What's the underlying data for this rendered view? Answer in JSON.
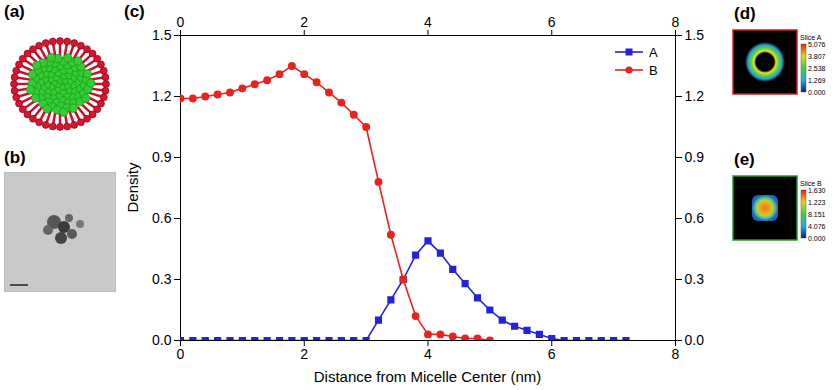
{
  "panels": [
    {
      "letter": "(a)"
    },
    {
      "letter": "(b)"
    },
    {
      "letter": "(d)",
      "colorbar": {
        "title": "Slice A",
        "labels": [
          "5.076",
          "3.807",
          "2.538",
          "1.269",
          "0.000"
        ]
      }
    },
    {
      "letter": "(e)",
      "colorbar": {
        "title": "Slice B",
        "labels": [
          "1.630",
          "1.223",
          "8.151",
          "4.076",
          "0.000"
        ]
      }
    }
  ],
  "chart_data": {
    "letter": "(c)",
    "type": "line",
    "xlabel": "Distance from Micelle Center (nm)",
    "ylabel": "Density",
    "xlim": [
      0,
      8
    ],
    "xticks": [
      0,
      2,
      4,
      6,
      8
    ],
    "ylim": [
      0,
      1.5
    ],
    "yticks": [
      {
        "value": 0,
        "label": "0.0"
      },
      {
        "value": 0.3,
        "label": "0.3"
      },
      {
        "value": 0.6,
        "label": "0.6"
      },
      {
        "value": 0.9,
        "label": "0.9"
      },
      {
        "value": 1.2,
        "label": "1.2"
      },
      {
        "value": 1.5,
        "label": "1.5"
      }
    ],
    "legend": "top-right",
    "x": [
      0,
      0.2,
      0.4,
      0.6,
      0.8,
      1.0,
      1.2,
      1.4,
      1.6,
      1.8,
      2.0,
      2.2,
      2.4,
      2.6,
      2.8,
      3.0,
      3.2,
      3.4,
      3.6,
      3.8,
      4.0,
      4.2,
      4.4,
      4.6,
      4.8,
      5.0,
      5.2,
      5.4,
      5.6,
      5.8,
      6.0,
      6.2,
      6.4,
      6.6,
      6.8,
      7.0,
      7.2
    ],
    "series": [
      {
        "name": "A",
        "color": "#2323dd",
        "marker": "square",
        "values": [
          0,
          0,
          0,
          0,
          0,
          0,
          0,
          0,
          0,
          0,
          0,
          0,
          0,
          0,
          0,
          0,
          0.1,
          0.2,
          0.3,
          0.42,
          0.49,
          0.43,
          0.35,
          0.28,
          0.21,
          0.15,
          0.1,
          0.07,
          0.05,
          0.03,
          0.01,
          0,
          0,
          0,
          0,
          0,
          0
        ]
      },
      {
        "name": "B",
        "color": "#e8231f",
        "marker": "circle",
        "values": [
          1.19,
          1.19,
          1.2,
          1.21,
          1.22,
          1.24,
          1.26,
          1.28,
          1.31,
          1.35,
          1.31,
          1.27,
          1.22,
          1.17,
          1.11,
          1.05,
          0.78,
          0.52,
          0.3,
          0.12,
          0.03,
          0.03,
          0.02,
          0.01,
          0.01,
          0.0,
          null,
          null,
          null,
          null,
          null,
          null,
          null,
          null,
          null,
          null,
          null
        ]
      }
    ]
  }
}
